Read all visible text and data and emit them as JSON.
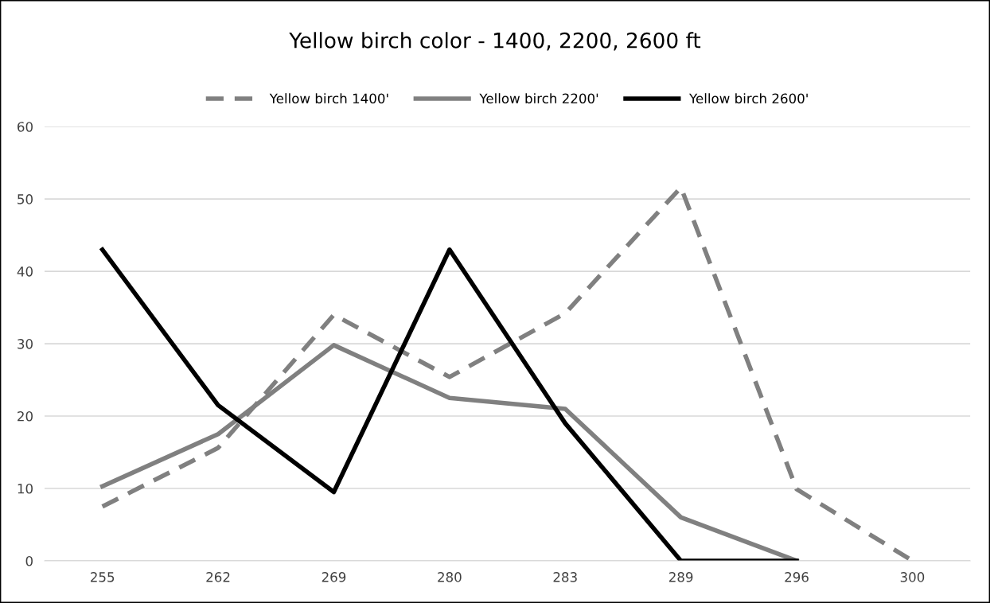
{
  "chart_data": {
    "type": "line",
    "title": "Yellow birch color - 1400, 2200, 2600 ft",
    "categories": [
      "255",
      "262",
      "269",
      "280",
      "283",
      "289",
      "296",
      "300"
    ],
    "series": [
      {
        "name": "Yellow birch 1400'",
        "color": "#808080",
        "line_style": "dashed",
        "values": [
          7.5,
          15.6,
          34,
          25.4,
          34.2,
          51.6,
          9.9,
          0
        ]
      },
      {
        "name": "Yellow birch 2200'",
        "color": "#808080",
        "line_style": "solid",
        "values": [
          10.3,
          17.5,
          29.8,
          22.5,
          21,
          6,
          0,
          null
        ]
      },
      {
        "name": "Yellow birch 2600'",
        "color": "#000000",
        "line_style": "solid",
        "values": [
          43,
          21.5,
          9.5,
          43,
          19,
          0,
          0,
          null
        ]
      }
    ],
    "ylim": [
      0,
      60
    ],
    "yticks": [
      0,
      10,
      20,
      30,
      40,
      50,
      60
    ],
    "grid": "y",
    "legend": "top",
    "marker": "none"
  }
}
